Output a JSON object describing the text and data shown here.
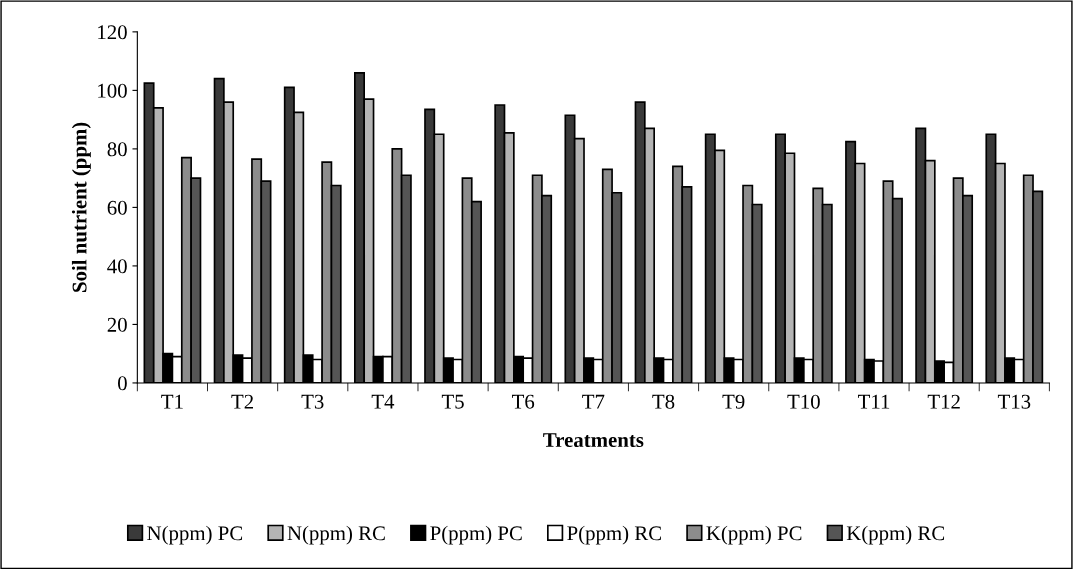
{
  "chart_data": {
    "type": "bar",
    "xlabel": "Treatments",
    "ylabel": "Soil nutrient (ppm)",
    "categories": [
      "T1",
      "T2",
      "T3",
      "T4",
      "T5",
      "T6",
      "T7",
      "T8",
      "T9",
      "T10",
      "T11",
      "T12",
      "T13"
    ],
    "series": [
      {
        "name": "N(ppm) PC",
        "color": "#3a3a3a",
        "values": [
          102.5,
          104,
          101,
          106,
          93.5,
          95,
          91.5,
          96,
          85,
          85,
          82.5,
          87,
          85
        ]
      },
      {
        "name": "N(ppm) RC",
        "color": "#b4b4b4",
        "values": [
          94,
          96,
          92.5,
          97,
          85,
          85.5,
          83.5,
          87,
          79.5,
          78.5,
          75,
          76,
          75
        ]
      },
      {
        "name": "P(ppm) PC",
        "color": "#000000",
        "values": [
          10,
          9.5,
          9.5,
          9,
          8.5,
          9,
          8.5,
          8.5,
          8.5,
          8.5,
          8,
          7.5,
          8.5
        ]
      },
      {
        "name": "P(ppm) RC",
        "color": "#ffffff",
        "values": [
          9,
          8.5,
          8,
          9,
          8,
          8.5,
          8,
          8,
          8,
          8,
          7.5,
          7,
          8
        ]
      },
      {
        "name": "K(ppm) PC",
        "color": "#8c8c8c",
        "values": [
          77,
          76.5,
          75.5,
          80,
          70,
          71,
          73,
          74,
          67.5,
          66.5,
          69,
          70,
          71
        ]
      },
      {
        "name": "K(ppm) RC",
        "color": "#555555",
        "values": [
          70,
          69,
          67.5,
          71,
          62,
          64,
          65,
          67,
          61,
          61,
          63,
          64,
          65.5
        ]
      }
    ],
    "ylim": [
      0,
      120
    ],
    "yticks": [
      0,
      20,
      40,
      60,
      80,
      100,
      120
    ],
    "grid": false,
    "legend": "bottom"
  }
}
